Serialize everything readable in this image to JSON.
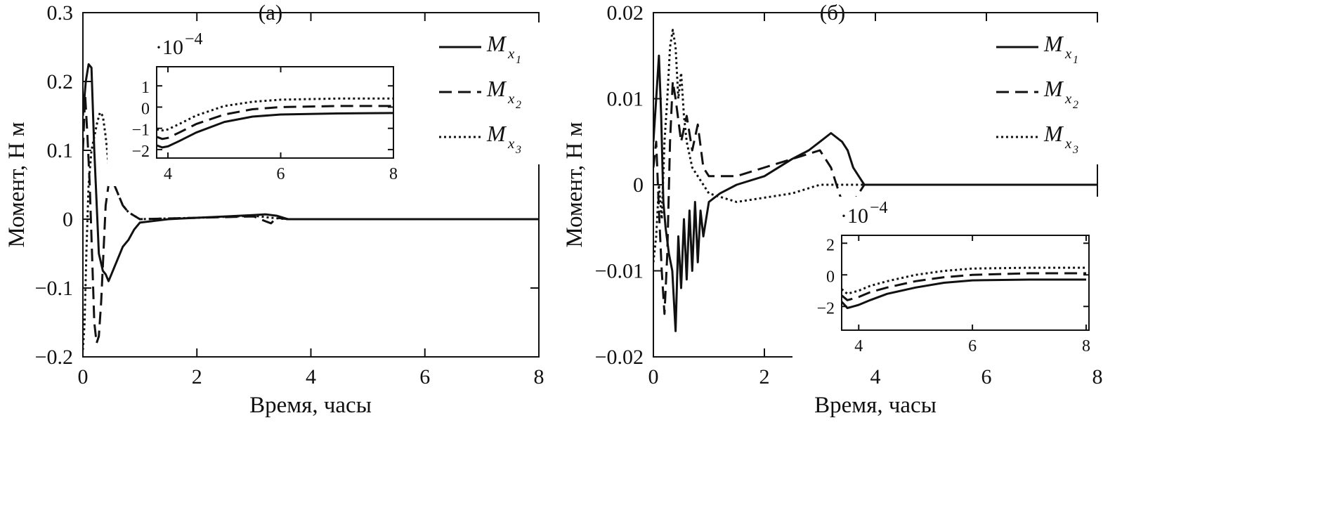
{
  "chart_data": [
    {
      "type": "line",
      "panel_label": "(а)",
      "xlabel": "Время, часы",
      "ylabel": "Момент, Н м",
      "xlim": [
        0,
        8
      ],
      "ylim": [
        -0.2,
        0.3
      ],
      "xticks": [
        {
          "v": 0,
          "label": "0"
        },
        {
          "v": 2,
          "label": "2"
        },
        {
          "v": 4,
          "label": "4"
        },
        {
          "v": 6,
          "label": "6"
        },
        {
          "v": 8,
          "label": "8"
        }
      ],
      "yticks": [
        {
          "v": -0.2,
          "label": "−0.2"
        },
        {
          "v": -0.1,
          "label": "−0.1"
        },
        {
          "v": 0,
          "label": "0"
        },
        {
          "v": 0.1,
          "label": "0.1"
        },
        {
          "v": 0.2,
          "label": "0.2"
        },
        {
          "v": 0.3,
          "label": "0.3"
        }
      ],
      "legend_position": "top-right",
      "series": [
        {
          "name": "M",
          "subscript": "x",
          "subsubscript": "1",
          "style": "solid",
          "x": [
            0,
            0.05,
            0.1,
            0.15,
            0.2,
            0.28,
            0.35,
            0.4,
            0.45,
            0.5,
            0.6,
            0.7,
            0.8,
            0.9,
            1.0,
            1.5,
            2.0,
            2.5,
            3.0,
            3.2,
            3.4,
            3.6,
            4.0,
            8.0
          ],
          "y": [
            0.15,
            0.2,
            0.225,
            0.22,
            0.1,
            -0.05,
            -0.075,
            -0.08,
            -0.09,
            -0.08,
            -0.06,
            -0.04,
            -0.03,
            -0.015,
            -0.005,
            0,
            0.002,
            0.004,
            0.006,
            0.007,
            0.005,
            0,
            0,
            0
          ]
        },
        {
          "name": "M",
          "subscript": "x",
          "subsubscript": "2",
          "style": "dashed",
          "x": [
            0,
            0.04,
            0.08,
            0.12,
            0.16,
            0.2,
            0.24,
            0.28,
            0.32,
            0.36,
            0.4,
            0.45,
            0.5,
            0.55,
            0.6,
            0.7,
            0.8,
            0.9,
            1.0,
            2.0,
            3.0,
            3.2,
            3.3,
            3.4,
            3.6,
            8.0
          ],
          "y": [
            0.1,
            0.18,
            0.12,
            0.05,
            -0.05,
            -0.15,
            -0.18,
            -0.17,
            -0.12,
            -0.05,
            0.02,
            0.05,
            0.06,
            0.05,
            0.04,
            0.02,
            0.01,
            0.005,
            0,
            0.002,
            0.004,
            -0.003,
            -0.006,
            0.002,
            0,
            0
          ]
        },
        {
          "name": "M",
          "subscript": "x",
          "subsubscript": "3",
          "style": "dotted",
          "x": [
            0,
            0.03,
            0.06,
            0.1,
            0.15,
            0.2,
            0.25,
            0.3,
            0.35,
            0.4,
            0.45,
            0.5,
            0.55,
            0.6,
            0.7,
            0.8,
            0.9,
            1.0,
            2.0,
            3.0,
            3.3,
            3.6,
            8.0
          ],
          "y": [
            -0.19,
            -0.15,
            -0.05,
            0.05,
            0.1,
            0.12,
            0.14,
            0.155,
            0.15,
            0.12,
            0.08,
            0.05,
            0.05,
            0.04,
            0.02,
            0.01,
            0.005,
            0,
            0.002,
            0.005,
            0.002,
            0,
            0
          ]
        }
      ],
      "inset": {
        "scale_label": "·10",
        "scale_exponent": "−4",
        "xlim": [
          3.8,
          8
        ],
        "ylim": [
          -2.4,
          1.9
        ],
        "xticks": [
          {
            "v": 4,
            "label": "4"
          },
          {
            "v": 6,
            "label": "6"
          },
          {
            "v": 8,
            "label": "8"
          }
        ],
        "yticks": [
          {
            "v": -2,
            "label": "−2"
          },
          {
            "v": -1,
            "label": "−1"
          },
          {
            "v": 0,
            "label": "0"
          },
          {
            "v": 1,
            "label": "1"
          }
        ],
        "series": [
          {
            "style": "solid",
            "x": [
              3.8,
              3.9,
              4.0,
              4.2,
              4.5,
              5.0,
              5.5,
              6.0,
              7.0,
              8.0
            ],
            "y": [
              -1.8,
              -1.9,
              -1.85,
              -1.6,
              -1.2,
              -0.7,
              -0.45,
              -0.35,
              -0.3,
              -0.28
            ]
          },
          {
            "style": "dashed",
            "x": [
              3.8,
              3.9,
              4.0,
              4.2,
              4.5,
              5.0,
              5.5,
              6.0,
              7.0,
              8.0
            ],
            "y": [
              -1.4,
              -1.5,
              -1.45,
              -1.2,
              -0.8,
              -0.35,
              -0.1,
              0,
              0.05,
              0.05
            ]
          },
          {
            "style": "dotted",
            "x": [
              3.8,
              3.9,
              4.0,
              4.2,
              4.5,
              5.0,
              5.5,
              6.0,
              7.0,
              8.0
            ],
            "y": [
              -1.05,
              -1.1,
              -1.05,
              -0.8,
              -0.4,
              0.05,
              0.25,
              0.35,
              0.4,
              0.4
            ]
          }
        ]
      }
    },
    {
      "type": "line",
      "panel_label": "(б)",
      "xlabel": "Время, часы",
      "ylabel": "Момент, Н м",
      "xlim": [
        0,
        8
      ],
      "ylim": [
        -0.02,
        0.02
      ],
      "xticks": [
        {
          "v": 0,
          "label": "0"
        },
        {
          "v": 2,
          "label": "2"
        },
        {
          "v": 4,
          "label": "4"
        },
        {
          "v": 6,
          "label": "6"
        },
        {
          "v": 8,
          "label": "8"
        }
      ],
      "yticks": [
        {
          "v": -0.02,
          "label": "−0.02"
        },
        {
          "v": -0.01,
          "label": "−0.01"
        },
        {
          "v": 0,
          "label": "0"
        },
        {
          "v": 0.01,
          "label": "0.01"
        },
        {
          "v": 0.02,
          "label": "0.02"
        }
      ],
      "legend_position": "top-right",
      "series": [
        {
          "name": "M",
          "subscript": "x",
          "subsubscript": "1",
          "style": "solid",
          "x": [
            0,
            0.05,
            0.1,
            0.14,
            0.18,
            0.22,
            0.28,
            0.34,
            0.4,
            0.45,
            0.5,
            0.55,
            0.6,
            0.65,
            0.7,
            0.75,
            0.8,
            0.85,
            0.9,
            1.0,
            1.2,
            1.5,
            2.0,
            2.5,
            2.8,
            3.0,
            3.2,
            3.4,
            3.5,
            3.6,
            3.7,
            3.8,
            8.0
          ],
          "y": [
            0.005,
            0.01,
            0.015,
            0.008,
            -0.002,
            -0.005,
            -0.008,
            -0.01,
            -0.017,
            -0.006,
            -0.012,
            -0.004,
            -0.011,
            -0.003,
            -0.01,
            -0.002,
            -0.009,
            -0.003,
            -0.006,
            -0.002,
            -0.001,
            0,
            0.001,
            0.003,
            0.004,
            0.005,
            0.006,
            0.005,
            0.004,
            0.002,
            0.001,
            0,
            0
          ]
        },
        {
          "name": "M",
          "subscript": "x",
          "subsubscript": "2",
          "style": "dashed",
          "x": [
            0,
            0.05,
            0.1,
            0.15,
            0.2,
            0.25,
            0.3,
            0.35,
            0.4,
            0.5,
            0.6,
            0.7,
            0.8,
            0.9,
            1.0,
            1.5,
            2.0,
            2.5,
            3.0,
            3.2,
            3.4,
            3.5,
            3.6,
            3.7,
            3.8,
            8.0
          ],
          "y": [
            0.002,
            0.005,
            -0.003,
            -0.01,
            -0.015,
            -0.008,
            0.005,
            0.012,
            0.01,
            0.005,
            0.008,
            0.004,
            0.007,
            0.002,
            0.001,
            0.001,
            0.002,
            0.003,
            0.004,
            0.002,
            -0.002,
            -0.004,
            -0.002,
            -0.001,
            0,
            0
          ]
        },
        {
          "name": "M",
          "subscript": "x",
          "subsubscript": "3",
          "style": "dotted",
          "x": [
            0,
            0.05,
            0.1,
            0.15,
            0.2,
            0.25,
            0.3,
            0.35,
            0.4,
            0.45,
            0.5,
            0.55,
            0.6,
            0.7,
            0.8,
            0.9,
            1.0,
            1.5,
            2.0,
            2.5,
            3.0,
            3.3,
            3.6,
            3.8,
            8.0
          ],
          "y": [
            -0.009,
            -0.006,
            0,
            -0.004,
            0.005,
            0.01,
            0.016,
            0.018,
            0.016,
            0.01,
            0.013,
            0.008,
            0.005,
            0.002,
            0.001,
            0,
            -0.001,
            -0.002,
            -0.0015,
            -0.001,
            0,
            0,
            0,
            0,
            0
          ]
        }
      ],
      "inset": {
        "scale_label": "·10",
        "scale_exponent": "−4",
        "xlim": [
          3.7,
          8.05
        ],
        "ylim": [
          -3.5,
          2.5
        ],
        "xticks": [
          {
            "v": 4,
            "label": "4"
          },
          {
            "v": 6,
            "label": "6"
          },
          {
            "v": 8,
            "label": "8"
          }
        ],
        "yticks": [
          {
            "v": -2,
            "label": "−2"
          },
          {
            "v": 0,
            "label": "0"
          },
          {
            "v": 2,
            "label": "2"
          }
        ],
        "series": [
          {
            "style": "solid",
            "x": [
              3.7,
              3.8,
              3.9,
              4.0,
              4.2,
              4.5,
              5.0,
              5.5,
              6.0,
              7.0,
              8.0
            ],
            "y": [
              -1.7,
              -2.1,
              -2.0,
              -1.9,
              -1.6,
              -1.2,
              -0.8,
              -0.5,
              -0.35,
              -0.3,
              -0.3
            ]
          },
          {
            "style": "dashed",
            "x": [
              3.7,
              3.8,
              3.9,
              4.0,
              4.2,
              4.5,
              5.0,
              5.5,
              6.0,
              7.0,
              8.0
            ],
            "y": [
              -1.3,
              -1.6,
              -1.5,
              -1.4,
              -1.1,
              -0.8,
              -0.4,
              -0.15,
              0,
              0.1,
              0.1
            ]
          },
          {
            "style": "dotted",
            "x": [
              3.7,
              3.8,
              3.9,
              4.0,
              4.2,
              4.5,
              5.0,
              5.5,
              6.0,
              7.0,
              8.0
            ],
            "y": [
              -0.9,
              -1.2,
              -1.1,
              -1.0,
              -0.7,
              -0.4,
              0,
              0.25,
              0.4,
              0.45,
              0.45
            ]
          }
        ]
      }
    }
  ]
}
